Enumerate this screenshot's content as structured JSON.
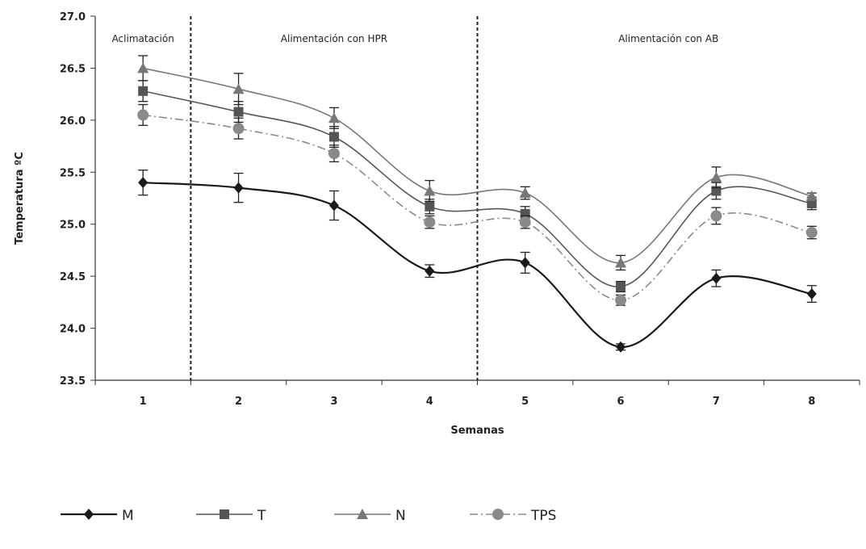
{
  "chart_data": {
    "type": "line",
    "ylabel": "Temperatura ºC",
    "xlabel": "Semanas",
    "ylim": [
      23.5,
      27.0
    ],
    "yticks": [
      "23.5",
      "24.0",
      "24.5",
      "25.0",
      "25.5",
      "26.0",
      "26.5",
      "27.0"
    ],
    "ytick_values": [
      23.5,
      24.0,
      24.5,
      25.0,
      25.5,
      26.0,
      26.5,
      27.0
    ],
    "categories": [
      "1",
      "2",
      "3",
      "4",
      "5",
      "6",
      "7",
      "8"
    ],
    "regions": [
      {
        "label": "Aclimatación",
        "from": 0.5,
        "to": 1.5
      },
      {
        "label": "Alimentación con HPR",
        "from": 1.5,
        "to": 4.5
      },
      {
        "label": "Alimentación con AB",
        "from": 4.5,
        "to": 8.5
      }
    ],
    "dividers": [
      1.5,
      4.5
    ],
    "series": [
      {
        "name": "M",
        "color": "#1a1a1a",
        "marker": "diamond",
        "dash": "solid",
        "values": [
          25.4,
          25.35,
          25.18,
          24.55,
          24.63,
          23.82,
          24.48,
          24.33
        ],
        "errors": [
          0.12,
          0.14,
          0.14,
          0.06,
          0.1,
          0.03,
          0.08,
          0.08
        ]
      },
      {
        "name": "T",
        "color": "#555555",
        "marker": "square",
        "dash": "solid",
        "values": [
          26.28,
          26.08,
          25.84,
          25.17,
          25.1,
          24.4,
          25.32,
          25.2
        ],
        "errors": [
          0.1,
          0.1,
          0.1,
          0.07,
          0.07,
          0.05,
          0.08,
          0.06
        ]
      },
      {
        "name": "N",
        "color": "#777777",
        "marker": "triangle",
        "dash": "solid",
        "values": [
          26.5,
          26.3,
          26.02,
          25.32,
          25.3,
          24.63,
          25.45,
          25.27
        ],
        "errors": [
          0.12,
          0.15,
          0.1,
          0.1,
          0.06,
          0.07,
          0.1,
          0.03
        ]
      },
      {
        "name": "TPS",
        "color": "#8a8a8a",
        "marker": "circle",
        "dash": "dashdot",
        "values": [
          26.05,
          25.92,
          25.68,
          25.02,
          25.02,
          24.27,
          25.08,
          24.92
        ],
        "errors": [
          0.1,
          0.1,
          0.08,
          0.06,
          0.06,
          0.05,
          0.08,
          0.06
        ]
      }
    ],
    "grid": false,
    "legend_position": "bottom"
  }
}
